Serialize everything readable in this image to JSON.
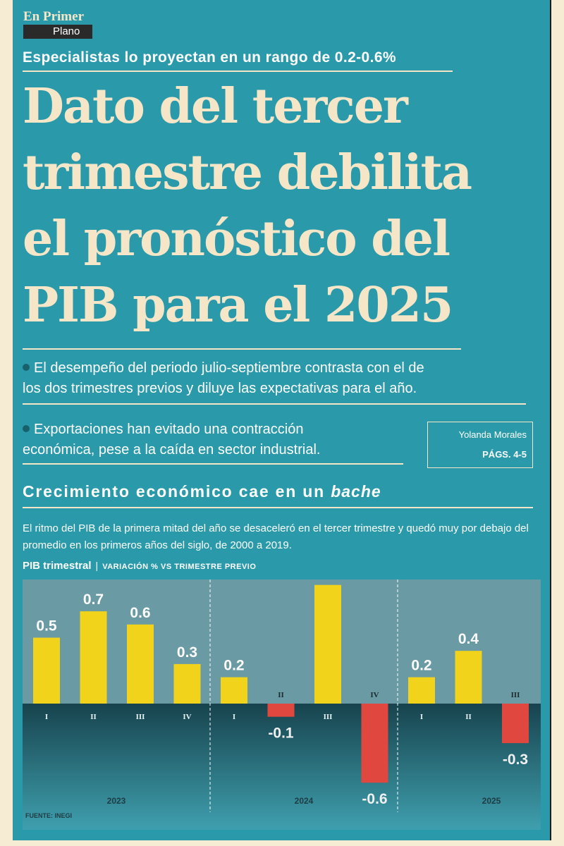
{
  "section": {
    "line1": "En Primer",
    "line2": "Plano"
  },
  "kicker": "Especialistas lo proyectan en un rango de 0.2-0.6%",
  "headline": {
    "line1": "Dato del tercer",
    "line2": "trimestre debilita",
    "line3": "el pronóstico del",
    "line4": "PIB para el 2025"
  },
  "bullets": [
    {
      "line1": "El desempeño del periodo julio-septiembre contrasta con el de",
      "line2": "los dos trimestres previos y diluye las expectativas para el año."
    },
    {
      "line1": "Exportaciones han evitado una contracción",
      "line2": "económica, pese a la caída en sector industrial."
    }
  ],
  "byline": {
    "author": "Yolanda Morales",
    "pages": "PÁGS. 4-5"
  },
  "section_title": {
    "text": "Crecimiento económico cae en un",
    "emphasis": "bache"
  },
  "dek": "El ritmo del PIB de la primera mitad del año se desaceleró en el tercer trimestre y quedó muy por debajo del promedio en los primeros años del siglo, de 2000 a 2019.",
  "chart_label": {
    "main": "PIB trimestral",
    "separator": "|",
    "sub": "VARIACIÓN % VS TRIMESTRE PREVIO"
  },
  "colors": {
    "positive": "#f2d31c",
    "negative": "#e0473e",
    "background": "#2a9aab",
    "cream": "#f5e6c8"
  },
  "chart_data": {
    "type": "bar",
    "title": "PIB trimestral",
    "subtitle": "VARIACIÓN % VS TRIMESTRE PREVIO",
    "ylim": [
      -0.8,
      1.0
    ],
    "groups": [
      {
        "year": "2023",
        "quarters": [
          "I",
          "II",
          "III",
          "IV"
        ],
        "values": [
          0.5,
          0.7,
          0.6,
          0.3
        ]
      },
      {
        "year": "2024",
        "quarters": [
          "I",
          "II",
          "III",
          "IV"
        ],
        "values": [
          0.2,
          -0.1,
          0.9,
          -0.6
        ]
      },
      {
        "year": "2025",
        "quarters": [
          "I",
          "II",
          "III"
        ],
        "values": [
          0.2,
          0.4,
          -0.3
        ]
      }
    ],
    "source": "FUENTE: INEGI"
  }
}
